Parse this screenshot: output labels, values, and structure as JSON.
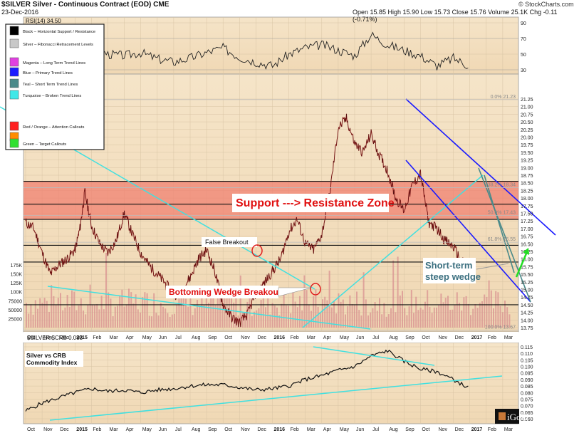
{
  "header": {
    "symbol_line": "$SILVER Silver - Continuous Contract (EOD) CME",
    "date": "23-Dec-2016",
    "copyright": "© StockCharts.com",
    "quote": "Open 15.85  High 15.90  Low 15.73  Close 15.76  Volume 25.1K  Chg -0.11 (-0.71%)",
    "rsi_label": "RSI(14) 34.50"
  },
  "legend": [
    {
      "label": "Black – Horizontal Support / Resistance",
      "color": "#000000"
    },
    {
      "label": "Silver – Fibonacci Retracement Levels",
      "color": "#c8c8c8"
    },
    {
      "label": "Magenta – Long Term Trend Lines",
      "color": "#e040e0"
    },
    {
      "label": "Blue – Primary Trend Lines",
      "color": "#1a1aff"
    },
    {
      "label": "Teal – Short Term Trend Lines",
      "color": "#4a8a8a"
    },
    {
      "label": "Turquoise – Broken Trend Lines",
      "color": "#40e8e8"
    },
    {
      "label": "Red / Orange – Attention Callouts",
      "color": "#ff2020",
      "color2": "#ff8c00"
    },
    {
      "label": "Green – Target Callouts",
      "color": "#30e030"
    }
  ],
  "annotations": {
    "zone": "Support ---> Resistance Zone",
    "false_breakout": "False Breakout",
    "bottoming": "Bottoming Wedge Breakout",
    "wedge_line1": "Short-term",
    "wedge_line2": "steep wedge",
    "ratio_title_line1": "Silver vs CRB",
    "ratio_title_line2": "Commodity Index",
    "ratio_label": "$SILVER:$CRB 0.083",
    "logo": "iGold"
  },
  "fib_labels": [
    {
      "text": "0.0% 21.23",
      "value": 21.23
    },
    {
      "text": "38.2% 18.34",
      "value": 18.34
    },
    {
      "text": "50.0% 17.43",
      "value": 17.43
    },
    {
      "text": "61.8% 16.55",
      "value": 16.55
    },
    {
      "text": "100.0% 13.67",
      "value": 13.67
    }
  ],
  "chart_data": {
    "type": "line",
    "x_labels": [
      "Oct",
      "Nov",
      "Dec",
      "2015",
      "Feb",
      "Mar",
      "Apr",
      "May",
      "Jun",
      "Jul",
      "Aug",
      "Sep",
      "Oct",
      "Nov",
      "Dec",
      "2016",
      "Feb",
      "Mar",
      "Apr",
      "May",
      "Jun",
      "Jul",
      "Aug",
      "Sep",
      "Oct",
      "Nov",
      "Dec",
      "2017",
      "Feb",
      "Mar"
    ],
    "price_axis": {
      "ylim": [
        13.5,
        21.5
      ],
      "ticks": [
        13.75,
        14.0,
        14.25,
        14.5,
        14.75,
        15.0,
        15.25,
        15.5,
        15.75,
        16.0,
        16.25,
        16.5,
        16.75,
        17.0,
        17.25,
        17.5,
        17.75,
        18.0,
        18.25,
        18.5,
        18.75,
        19.0,
        19.25,
        19.5,
        19.75,
        20.0,
        20.25,
        20.5,
        20.75,
        21.0,
        21.25
      ]
    },
    "volume_axis": {
      "ticks": [
        "175K",
        "150K",
        "125K",
        "100K",
        "75000",
        "50000",
        "25000"
      ],
      "tick_values": [
        175000,
        150000,
        125000,
        100000,
        75000,
        50000,
        25000
      ]
    },
    "rsi_axis": {
      "ticks": [
        90,
        70,
        50,
        30
      ]
    },
    "ratio_axis": {
      "ticks": [
        0.115,
        0.11,
        0.105,
        0.1,
        0.095,
        0.09,
        0.085,
        0.08,
        0.075,
        0.07,
        0.065,
        0.06
      ]
    },
    "resistance_zone": [
      17.3,
      18.55
    ],
    "horizontal_levels": [
      17.8,
      16.45,
      15.9,
      14.5
    ],
    "price_series": {
      "name": "Silver",
      "x": [
        0,
        0.5,
        1,
        1.5,
        2,
        2.5,
        3,
        3.3,
        3.6,
        4,
        4.5,
        5,
        5.5,
        6,
        6.5,
        7,
        7.5,
        8,
        8.5,
        9,
        9.5,
        10,
        10.5,
        11,
        11.5,
        12,
        12.5,
        13,
        13.5,
        14,
        14.5,
        15,
        15.5,
        16,
        16.5,
        17,
        17.5,
        18,
        18.5,
        19,
        19.5,
        20,
        20.5,
        21,
        21.5,
        22,
        22.5,
        23,
        23.5,
        24,
        24.5,
        25,
        25.5,
        26,
        26.5,
        27
      ],
      "y": [
        17.2,
        17.0,
        16.2,
        15.5,
        15.8,
        16.0,
        16.3,
        17.0,
        18.2,
        17.1,
        16.5,
        16.2,
        16.6,
        17.5,
        16.8,
        16.2,
        15.8,
        15.5,
        15.2,
        14.8,
        15.0,
        15.4,
        16.0,
        16.3,
        15.6,
        14.5,
        14.1,
        13.9,
        14.2,
        14.9,
        15.2,
        15.6,
        16.0,
        16.9,
        17.3,
        16.5,
        16.3,
        16.8,
        18.2,
        20.3,
        20.6,
        19.8,
        19.5,
        20.1,
        19.4,
        18.9,
        18.0,
        17.6,
        18.4,
        18.8,
        17.2,
        17.0,
        16.6,
        16.4,
        15.9,
        15.76
      ]
    },
    "rsi_series": {
      "x": [
        0,
        1,
        2,
        3,
        4,
        5,
        6,
        7,
        8,
        9,
        10,
        11,
        12,
        13,
        14,
        15,
        16,
        17,
        18,
        19,
        20,
        21,
        22,
        23,
        24,
        25,
        26,
        27
      ],
      "y": [
        45,
        40,
        50,
        55,
        62,
        50,
        48,
        52,
        44,
        40,
        45,
        52,
        58,
        46,
        40,
        35,
        50,
        58,
        62,
        55,
        48,
        75,
        62,
        55,
        48,
        35,
        45,
        34.5
      ]
    },
    "ratio_series": {
      "name": "$SILVER:$CRB",
      "x": [
        0,
        1,
        2,
        3,
        4,
        5,
        6,
        7,
        8,
        9,
        10,
        11,
        12,
        13,
        14,
        15,
        16,
        17,
        18,
        19,
        20,
        21,
        22,
        23,
        24,
        25,
        26,
        27
      ],
      "y": [
        0.066,
        0.072,
        0.076,
        0.08,
        0.083,
        0.081,
        0.082,
        0.08,
        0.082,
        0.083,
        0.085,
        0.086,
        0.086,
        0.084,
        0.082,
        0.083,
        0.085,
        0.09,
        0.093,
        0.097,
        0.1,
        0.108,
        0.112,
        0.104,
        0.098,
        0.096,
        0.09,
        0.083
      ]
    }
  }
}
